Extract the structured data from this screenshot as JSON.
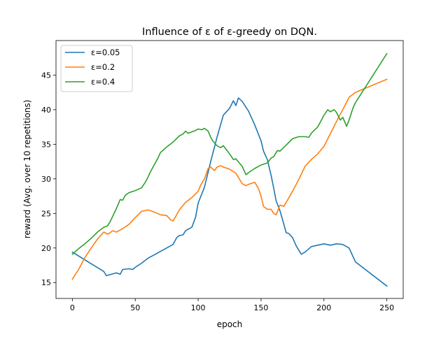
{
  "chart_data": {
    "type": "line",
    "title": "Influence of ε of ε-greedy on DQN.",
    "xlabel": "epoch",
    "ylabel": "reward (Avg. over 10 repetitions)",
    "xlim": [
      -13,
      263
    ],
    "ylim": [
      12.7,
      50.0
    ],
    "xticks": [
      0,
      50,
      100,
      150,
      200,
      250
    ],
    "yticks": [
      15,
      20,
      25,
      30,
      35,
      40,
      45
    ],
    "grid": false,
    "legend_position": "upper-left",
    "series": [
      {
        "name": "ε=0.05",
        "color": "#1f77b4",
        "x": [
          0,
          25,
          27,
          35,
          38,
          40,
          45,
          48,
          50,
          55,
          60,
          65,
          70,
          75,
          80,
          83,
          85,
          88,
          90,
          95,
          98,
          100,
          105,
          108,
          110,
          115,
          120,
          125,
          128,
          130,
          132,
          135,
          140,
          145,
          150,
          152,
          155,
          158,
          160,
          162,
          165,
          168,
          170,
          172,
          175,
          178,
          180,
          182,
          185,
          190,
          195,
          200,
          205,
          210,
          215,
          220,
          225,
          250
        ],
        "values": [
          19.4,
          16.6,
          16.0,
          16.4,
          16.2,
          16.9,
          17.0,
          16.9,
          17.2,
          17.8,
          18.5,
          19.0,
          19.5,
          20.0,
          20.5,
          21.5,
          21.8,
          21.9,
          22.5,
          23.0,
          24.5,
          26.5,
          28.8,
          31.0,
          32.5,
          36.0,
          39.2,
          40.2,
          41.3,
          40.6,
          41.7,
          41.2,
          39.8,
          37.8,
          35.5,
          34.0,
          32.8,
          30.5,
          28.7,
          26.8,
          25.4,
          23.5,
          22.2,
          22.1,
          21.5,
          20.3,
          19.7,
          19.1,
          19.4,
          20.2,
          20.4,
          20.6,
          20.4,
          20.6,
          20.5,
          20.0,
          18.0,
          14.5
        ]
      },
      {
        "name": "ε=0.2",
        "color": "#ff7f0e",
        "x": [
          0,
          5,
          10,
          15,
          20,
          25,
          28,
          30,
          32,
          35,
          38,
          40,
          45,
          50,
          55,
          60,
          62,
          65,
          70,
          75,
          78,
          80,
          82,
          85,
          90,
          95,
          100,
          102,
          105,
          108,
          110,
          113,
          115,
          118,
          120,
          125,
          130,
          135,
          138,
          140,
          145,
          148,
          150,
          152,
          155,
          158,
          160,
          162,
          165,
          168,
          170,
          175,
          180,
          185,
          190,
          195,
          200,
          205,
          210,
          215,
          220,
          225,
          250
        ],
        "values": [
          15.5,
          16.9,
          18.6,
          20.0,
          21.3,
          22.3,
          22.0,
          22.2,
          22.5,
          22.3,
          22.6,
          22.8,
          23.4,
          24.4,
          25.3,
          25.5,
          25.4,
          25.2,
          24.8,
          24.7,
          24.1,
          23.9,
          24.5,
          25.5,
          26.6,
          27.3,
          28.2,
          29.1,
          30.0,
          31.5,
          31.7,
          31.2,
          31.7,
          31.9,
          31.7,
          31.4,
          30.8,
          29.3,
          29.0,
          29.2,
          29.5,
          28.6,
          27.5,
          26.0,
          25.6,
          25.6,
          25.0,
          24.8,
          26.2,
          26.0,
          26.6,
          28.2,
          29.9,
          31.8,
          32.8,
          33.6,
          34.7,
          36.5,
          38.3,
          40.0,
          41.8,
          42.5,
          44.4
        ]
      },
      {
        "name": "ε=0.4",
        "color": "#2ca02c",
        "x": [
          0,
          5,
          10,
          15,
          20,
          25,
          28,
          30,
          35,
          38,
          40,
          42,
          45,
          50,
          55,
          58,
          60,
          62,
          65,
          68,
          70,
          75,
          80,
          85,
          88,
          90,
          92,
          95,
          98,
          100,
          103,
          105,
          108,
          110,
          112,
          115,
          118,
          120,
          125,
          128,
          130,
          135,
          138,
          140,
          145,
          150,
          155,
          158,
          160,
          163,
          165,
          170,
          175,
          180,
          185,
          188,
          190,
          195,
          198,
          200,
          203,
          205,
          208,
          210,
          213,
          215,
          218,
          220,
          223,
          225,
          250
        ],
        "values": [
          19.1,
          19.9,
          20.6,
          21.4,
          22.3,
          23.0,
          23.2,
          23.8,
          25.7,
          27.0,
          26.9,
          27.6,
          28.0,
          28.3,
          28.7,
          29.5,
          30.2,
          31.0,
          32.0,
          33.0,
          33.8,
          34.6,
          35.3,
          36.2,
          36.5,
          36.9,
          36.6,
          36.8,
          37.0,
          37.2,
          37.1,
          37.3,
          36.9,
          36.0,
          35.4,
          34.8,
          34.5,
          34.8,
          33.6,
          32.8,
          32.9,
          31.8,
          30.6,
          30.9,
          31.5,
          32.0,
          32.3,
          33.0,
          33.2,
          34.1,
          34.0,
          34.9,
          35.8,
          36.1,
          36.1,
          36.0,
          36.6,
          37.5,
          38.5,
          39.2,
          40.0,
          39.7,
          40.0,
          39.6,
          38.5,
          38.9,
          37.6,
          38.5,
          40.2,
          41.0,
          48.1
        ]
      }
    ]
  }
}
